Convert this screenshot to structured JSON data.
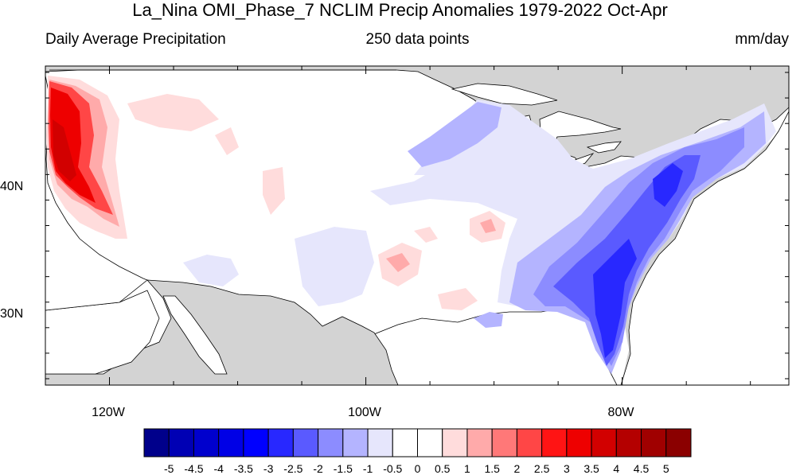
{
  "title": "La_Nina OMI_Phase_7 NCLIM Precip Anomalies 1979-2022 Oct-Apr",
  "subtitle_left": "Daily Average Precipitation",
  "subtitle_center": "250 data points",
  "subtitle_right": "mm/day",
  "map": {
    "lon_range": [
      -125,
      -67
    ],
    "lat_range": [
      24.5,
      49.5
    ],
    "land_color": "#ffffff",
    "masked_color": "#d3d3d3",
    "lon_ticks": [
      {
        "value": -120,
        "label": "120W"
      },
      {
        "value": -100,
        "label": "100W"
      },
      {
        "value": -80,
        "label": "80W"
      }
    ],
    "lat_ticks": [
      {
        "value": 40,
        "label": "40N"
      },
      {
        "value": 30,
        "label": "30N"
      }
    ]
  },
  "colorbar": {
    "colors": [
      "#00008b",
      "#0000b4",
      "#0000cd",
      "#0000e6",
      "#0000ff",
      "#2828ff",
      "#5a5aff",
      "#8c8cff",
      "#b4b4ff",
      "#e6e6fc",
      "#ffffff",
      "#ffffff",
      "#ffdcdc",
      "#ffaaaa",
      "#ff7878",
      "#ff4646",
      "#ff1414",
      "#ee0000",
      "#d20000",
      "#b40000",
      "#a00000",
      "#8b0000"
    ],
    "labels": [
      "-5",
      "-4.5",
      "-4",
      "-3.5",
      "-3",
      "-2.5",
      "-2",
      "-1.5",
      "-1",
      "-0.5",
      "0",
      "0.5",
      "1",
      "1.5",
      "2",
      "2.5",
      "3",
      "3.5",
      "4",
      "4.5",
      "5"
    ]
  }
}
